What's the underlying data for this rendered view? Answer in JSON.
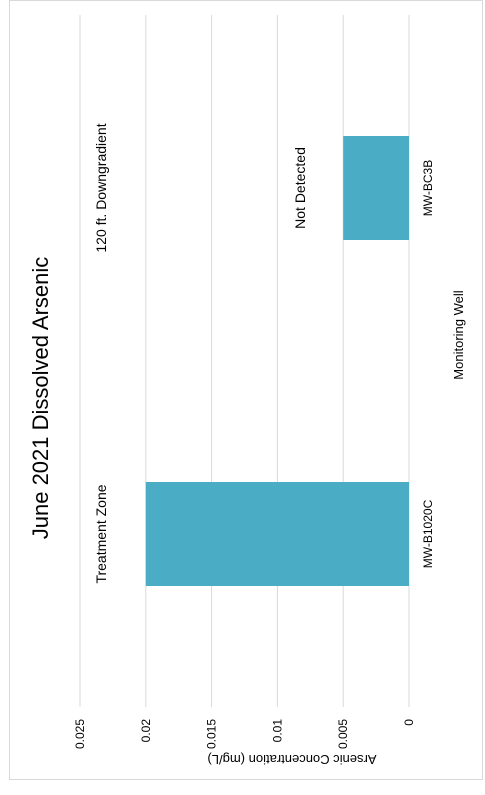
{
  "chart_data": {
    "type": "bar",
    "orientation": "vertical",
    "rotation": "page rotated 90 degrees counter-clockwise",
    "title": "June 2021 Dissolved Arsenic",
    "xlabel": "Monitoring Well",
    "ylabel": "Arsenic Concentration (mg/L)",
    "categories": [
      "MW-B1020C",
      "MW-BC3B"
    ],
    "values": [
      0.02,
      0.005
    ],
    "ylim": [
      0,
      0.025
    ],
    "yticks": [
      0,
      0.005,
      0.01,
      0.015,
      0.02,
      0.025
    ],
    "ytick_labels": [
      "0",
      "0.005",
      "0.01",
      "0.015",
      "0.02",
      "0.025"
    ],
    "bar_color": "#4bacc6",
    "grid": true,
    "legend": "none",
    "annotations": [
      {
        "text": "Treatment Zone",
        "category": "MW-B1020C"
      },
      {
        "text": "120 ft. Downgradient",
        "category": "MW-BC3B"
      },
      {
        "text": "Not Detected",
        "category": "MW-BC3B"
      }
    ]
  }
}
